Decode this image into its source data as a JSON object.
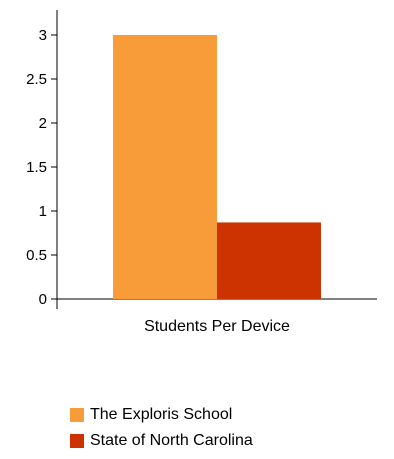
{
  "chart_data": {
    "type": "bar",
    "categories": [
      "Students Per Device"
    ],
    "series": [
      {
        "name": "The Exploris School",
        "values": [
          3.0
        ],
        "color": "#F89C3A"
      },
      {
        "name": "State of North Carolina",
        "values": [
          0.87
        ],
        "color": "#CC3300"
      }
    ],
    "ylim": [
      0,
      3
    ],
    "yticks": [
      "0",
      "0.5",
      "1",
      "1.5",
      "2",
      "2.5",
      "3"
    ],
    "legend_position": "bottom-left",
    "grid": false
  }
}
